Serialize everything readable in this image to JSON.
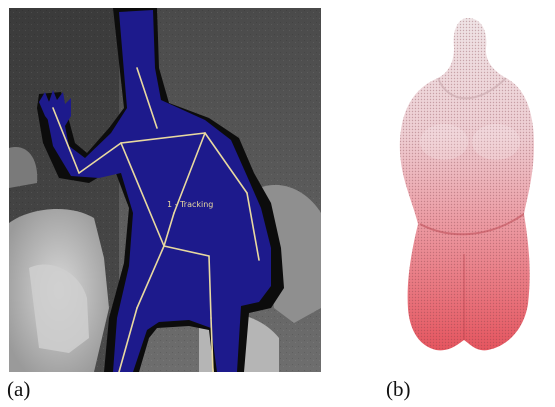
{
  "panels": [
    {
      "caption": "(a)",
      "tracking_label": "1 - Tracking"
    },
    {
      "caption": "(b)"
    }
  ],
  "colors": {
    "depth_background_dark": "#3a3a3a",
    "depth_background_light": "#b8b8b8",
    "silhouette": "#1d1a8c",
    "skeleton": "#e8d9a0",
    "pointcloud_top": "#f1e6e8",
    "pointcloud_bottom": "#e8505a"
  }
}
